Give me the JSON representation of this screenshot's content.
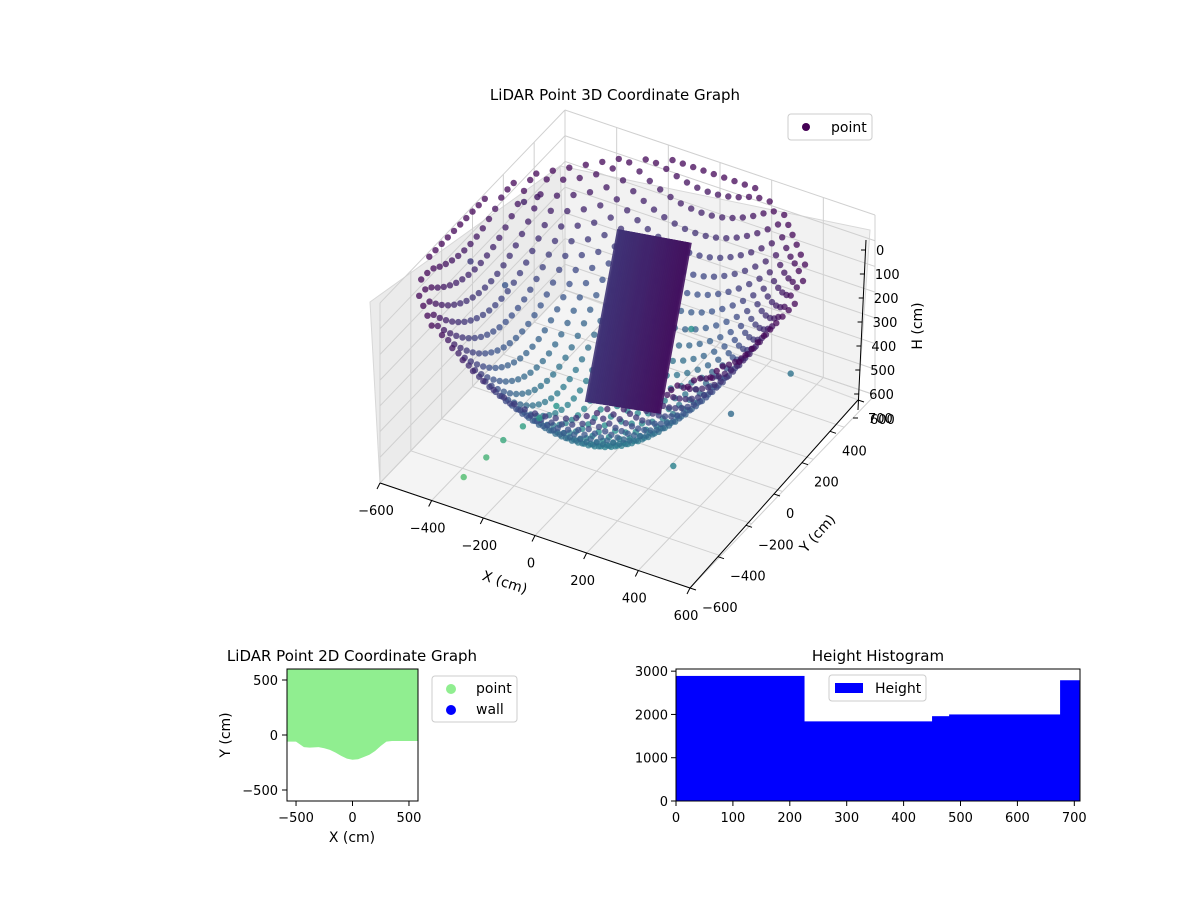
{
  "chart_data": [
    {
      "type": "scatter",
      "projection": "3d",
      "title": "LiDAR Point 3D Coordinate Graph",
      "xlabel": "X (cm)",
      "ylabel": "Y (cm)",
      "zlabel": "H (cm)",
      "xlim": [
        -600,
        600
      ],
      "ylim": [
        -600,
        600
      ],
      "zlim": [
        0,
        700
      ],
      "z_inverted": true,
      "xticks": [
        "-600",
        "-400",
        "-200",
        "0",
        "200",
        "400",
        "600"
      ],
      "yticks": [
        "-600",
        "-400",
        "-200",
        "0",
        "200",
        "400",
        "600"
      ],
      "zticks": [
        "0",
        "100",
        "200",
        "300",
        "400",
        "500",
        "600",
        "700"
      ],
      "grid": true,
      "legend": {
        "placement": "top-right",
        "entries": [
          "point"
        ]
      },
      "series": [
        {
          "name": "point",
          "color": "#440154",
          "colormap": "viridis"
        }
      ]
    },
    {
      "type": "scatter",
      "title": "LiDAR Point 2D Coordinate Graph",
      "xlabel": "X (cm)",
      "ylabel": "Y (cm)",
      "xlim": [
        -580,
        580
      ],
      "ylim": [
        -600,
        600
      ],
      "xticks": [
        "−500",
        "0",
        "500"
      ],
      "yticks": [
        "−500",
        "0",
        "500"
      ],
      "legend": {
        "placement": "outside-right",
        "entries": [
          "point",
          "wall"
        ]
      },
      "series": [
        {
          "name": "point",
          "color": "#90ee90",
          "boundary": [
            [
              -580,
              -60
            ],
            [
              -500,
              -60
            ],
            [
              -430,
              -110
            ],
            [
              -380,
              -115
            ],
            [
              -300,
              -110
            ],
            [
              -250,
              -120
            ],
            [
              -200,
              -135
            ],
            [
              -150,
              -160
            ],
            [
              -100,
              -190
            ],
            [
              -50,
              -215
            ],
            [
              0,
              -225
            ],
            [
              50,
              -220
            ],
            [
              100,
              -200
            ],
            [
              150,
              -180
            ],
            [
              200,
              -145
            ],
            [
              250,
              -100
            ],
            [
              300,
              -60
            ],
            [
              350,
              -55
            ],
            [
              580,
              -55
            ]
          ]
        },
        {
          "name": "wall",
          "color": "#0000ff",
          "points": []
        }
      ]
    },
    {
      "type": "bar",
      "subtype": "histogram",
      "title": "Height Histogram",
      "xlim": [
        0,
        710
      ],
      "ylim": [
        0,
        3050
      ],
      "xticks": [
        "0",
        "100",
        "200",
        "300",
        "400",
        "500",
        "600",
        "700"
      ],
      "yticks": [
        "0",
        "1000",
        "2000",
        "3000"
      ],
      "legend": {
        "placement": "upper-center",
        "entries": [
          "Height"
        ]
      },
      "series": [
        {
          "name": "Height",
          "color": "#0000ff",
          "bins": [
            {
              "x0": 0,
              "x1": 225,
              "value": 2890
            },
            {
              "x0": 225,
              "x1": 450,
              "value": 1840
            },
            {
              "x0": 450,
              "x1": 480,
              "value": 1960
            },
            {
              "x0": 480,
              "x1": 675,
              "value": 2000
            },
            {
              "x0": 675,
              "x1": 710,
              "value": 2790
            }
          ]
        }
      ]
    }
  ]
}
